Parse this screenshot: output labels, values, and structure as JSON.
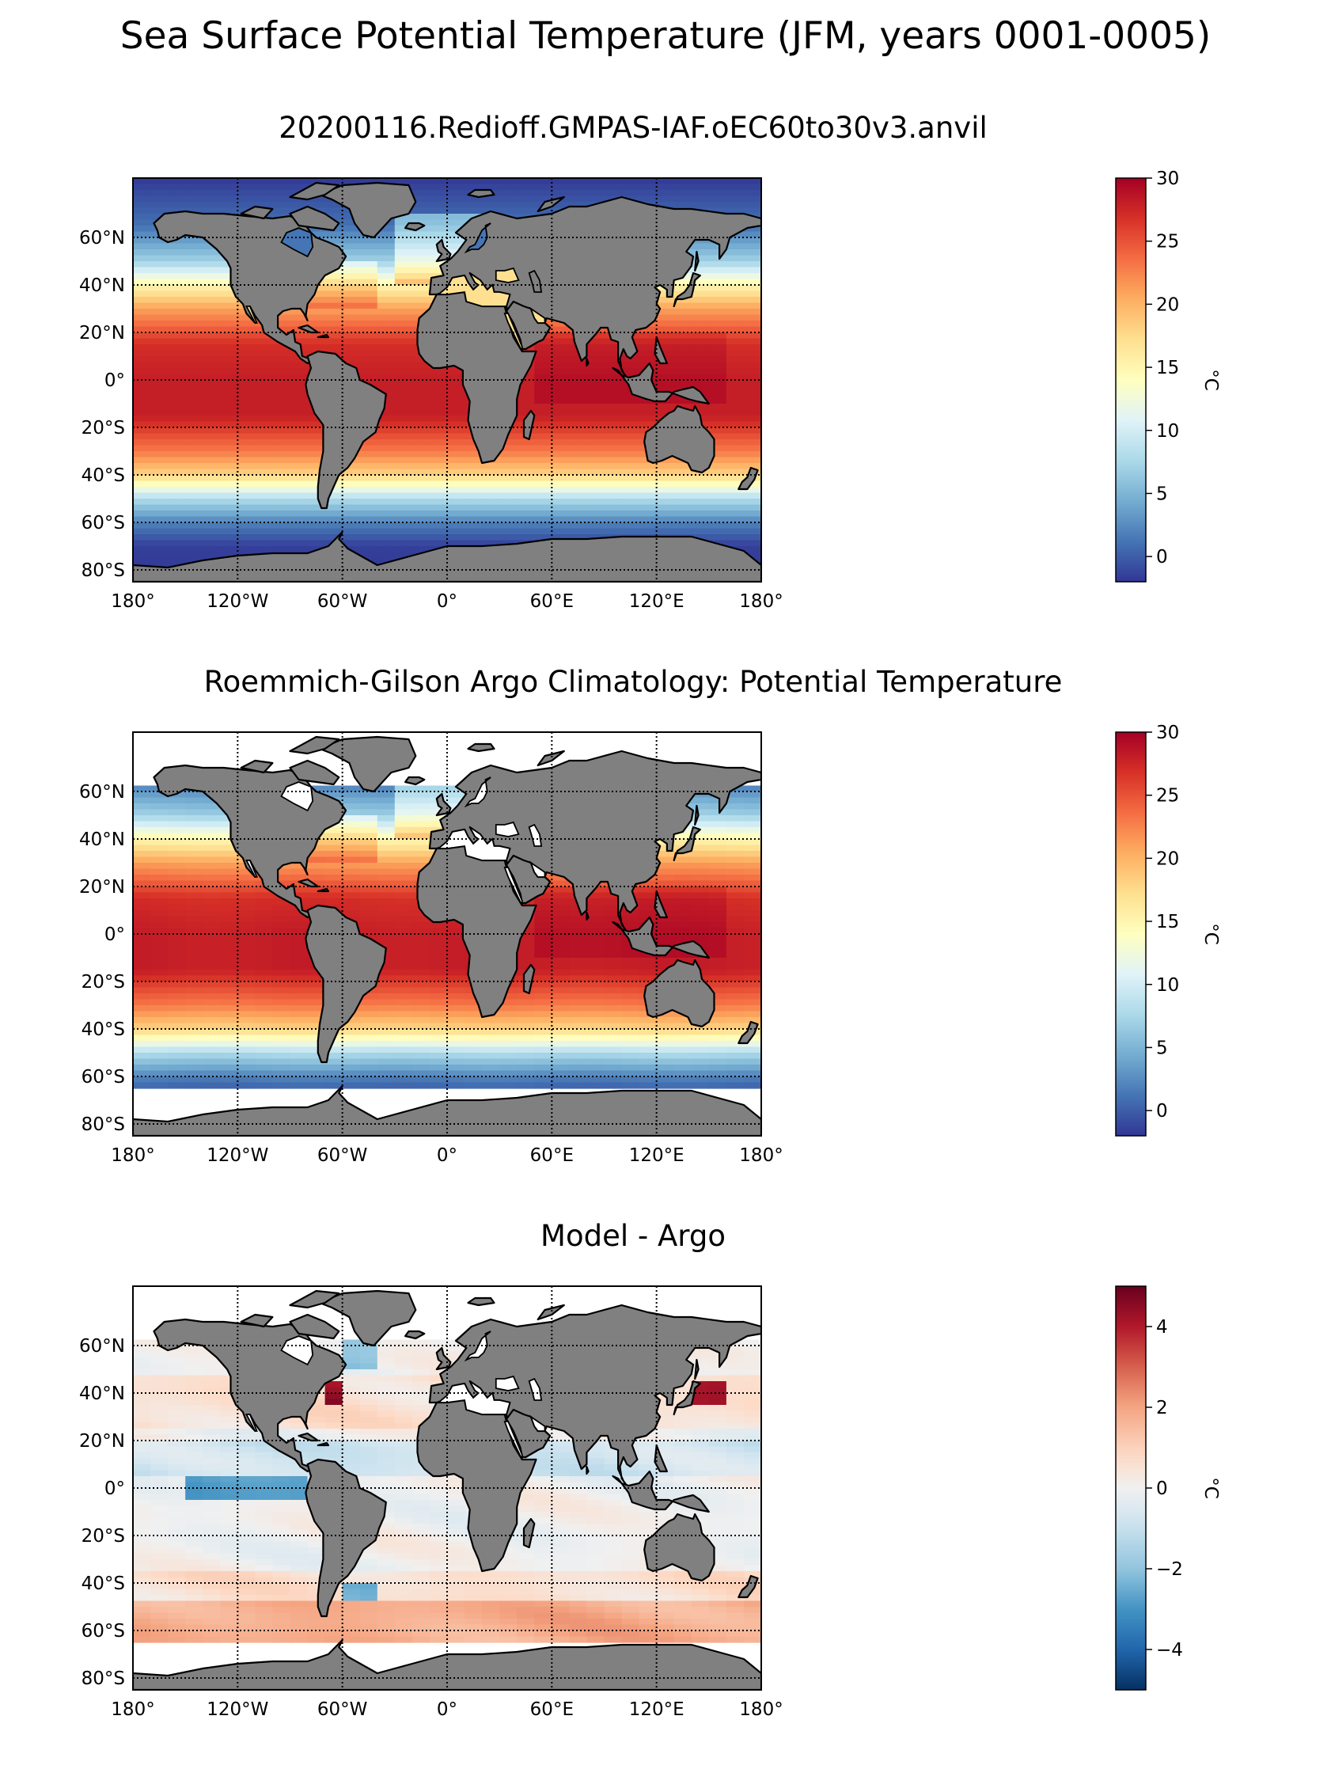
{
  "figure": {
    "suptitle": "Sea Surface Potential Temperature (JFM, years 0001-0005)",
    "land_color": "#808080",
    "missing_color": "#ffffff",
    "grid_style": "dotted"
  },
  "panels": [
    {
      "title": "20200116.Redioff.GMPAS-IAF.oEC60to30v3.anvil",
      "colormap": "RdYlBu_r",
      "colorbar": {
        "min": -2,
        "max": 30,
        "ticks": [
          "30",
          "25",
          "20",
          "15",
          "10",
          "5",
          "0"
        ],
        "unit": "°C"
      },
      "coverage": "global ocean"
    },
    {
      "title": "Roemmich-Gilson Argo Climatology: Potential Temperature",
      "colormap": "RdYlBu_r",
      "colorbar": {
        "min": -2,
        "max": 30,
        "ticks": [
          "30",
          "25",
          "20",
          "15",
          "10",
          "5",
          "0"
        ],
        "unit": "°C"
      },
      "coverage": "ocean between 65°S and about 60°N; no data in Arctic, marginal seas and around Antarctica"
    },
    {
      "title": "Model - Argo",
      "colormap": "RdBu_r (diverging)",
      "colorbar": {
        "min": -5,
        "max": 5,
        "ticks": [
          "4",
          "2",
          "0",
          "−2",
          "−4"
        ],
        "unit": "°C"
      },
      "coverage": "ocean between 65°S and about 60°N"
    }
  ],
  "axes": {
    "lon_ticks": [
      "180°",
      "120°W",
      "60°W",
      "0°",
      "60°E",
      "120°E",
      "180°"
    ],
    "lat_ticks": [
      "60°N",
      "40°N",
      "20°N",
      "0°",
      "20°S",
      "40°S",
      "60°S",
      "80°S"
    ]
  },
  "map_data": {
    "projection": "plate carree (equirectangular)",
    "extent": {
      "lon": [
        -180,
        180
      ],
      "lat": [
        -85,
        85
      ]
    },
    "sst_zonal_profile_model": [
      {
        "lat": 85,
        "sst": -1.8
      },
      {
        "lat": 65,
        "sst": 1
      },
      {
        "lat": 50,
        "sst": 7
      },
      {
        "lat": 40,
        "sst": 15
      },
      {
        "lat": 30,
        "sst": 21
      },
      {
        "lat": 15,
        "sst": 27
      },
      {
        "lat": 0,
        "sst": 28
      },
      {
        "lat": -15,
        "sst": 28
      },
      {
        "lat": -30,
        "sst": 23
      },
      {
        "lat": -40,
        "sst": 18
      },
      {
        "lat": -50,
        "sst": 8
      },
      {
        "lat": -60,
        "sst": 2
      },
      {
        "lat": -70,
        "sst": -1.5
      },
      {
        "lat": -85,
        "sst": -1.8
      }
    ],
    "bias_features": [
      "warm bias (~+4 °C) off US east coast near 40°N",
      "warm bias (~+4 °C) off Japan near 40°N",
      "cold bias (~−3 °C) in eastern equatorial Pacific",
      "warm bias (~+2 °C) band in Southern Ocean 50–60°S",
      "cold bias (~−3 °C) off Argentina near 45°S"
    ]
  }
}
